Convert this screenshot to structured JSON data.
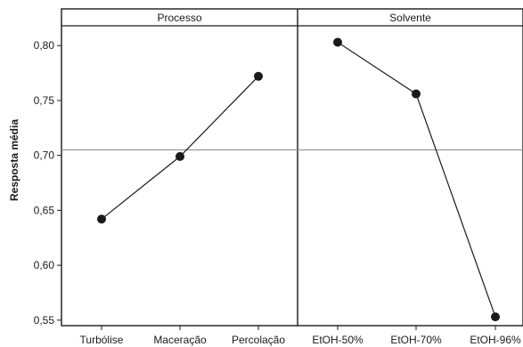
{
  "chart_data": {
    "type": "line",
    "ylabel": "Resposta média",
    "ylim": [
      0.545,
      0.818
    ],
    "yticks": [
      "0,55",
      "0,60",
      "0,65",
      "0,70",
      "0,75",
      "0,80"
    ],
    "ytick_values": [
      0.55,
      0.6,
      0.65,
      0.7,
      0.75,
      0.8
    ],
    "reference_line": 0.705,
    "panels": [
      {
        "title": "Processo",
        "categories": [
          "Turbólise",
          "Maceração",
          "Percolação"
        ],
        "values": [
          0.642,
          0.699,
          0.772
        ]
      },
      {
        "title": "Solvente",
        "categories": [
          "EtOH-50%",
          "EtOH-70%",
          "EtOH-96%"
        ],
        "values": [
          0.803,
          0.756,
          0.553
        ]
      }
    ],
    "grid": false,
    "legend": "none"
  }
}
